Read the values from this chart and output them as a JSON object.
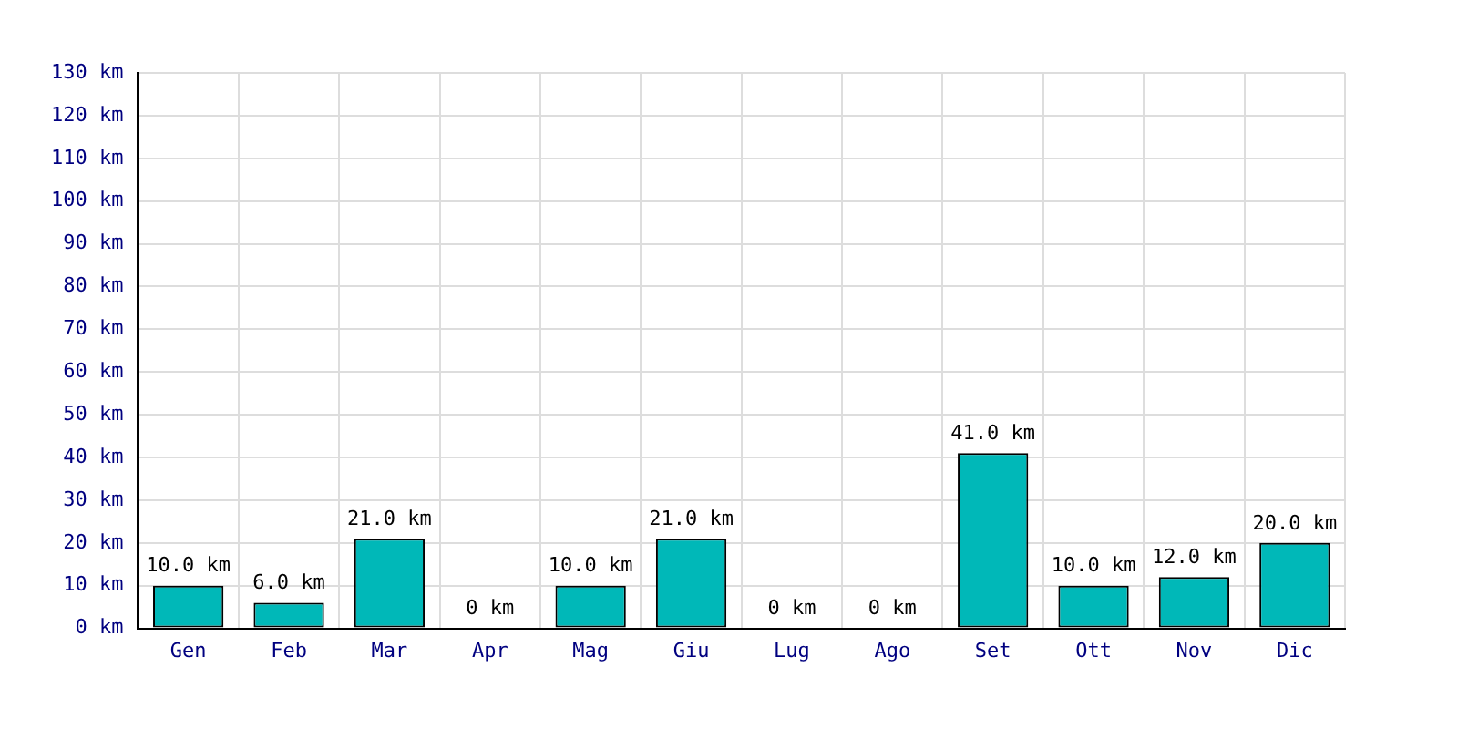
{
  "chart_data": {
    "type": "bar",
    "categories": [
      "Gen",
      "Feb",
      "Mar",
      "Apr",
      "Mag",
      "Giu",
      "Lug",
      "Ago",
      "Set",
      "Ott",
      "Nov",
      "Dic"
    ],
    "values": [
      10,
      6,
      21,
      0,
      10,
      21,
      0,
      0,
      41,
      10,
      12,
      20
    ],
    "value_labels": [
      "10.0 km",
      "6.0 km",
      "21.0 km",
      "0 km",
      "10.0 km",
      "21.0 km",
      "0 km",
      "0 km",
      "41.0 km",
      "10.0 km",
      "12.0 km",
      "20.0 km"
    ],
    "color": "#00b8b8",
    "ylim": [
      0,
      130
    ],
    "yticks": [
      {
        "value": 0,
        "label": "0 km"
      },
      {
        "value": 10,
        "label": "10 km"
      },
      {
        "value": 20,
        "label": "20 km"
      },
      {
        "value": 30,
        "label": "30 km"
      },
      {
        "value": 40,
        "label": "40 km"
      },
      {
        "value": 50,
        "label": "50 km"
      },
      {
        "value": 60,
        "label": "60 km"
      },
      {
        "value": 70,
        "label": "70 km"
      },
      {
        "value": 80,
        "label": "80 km"
      },
      {
        "value": 90,
        "label": "90 km"
      },
      {
        "value": 100,
        "label": "100 km"
      },
      {
        "value": 110,
        "label": "110 km"
      },
      {
        "value": 120,
        "label": "120 km"
      },
      {
        "value": 130,
        "label": "130 km"
      }
    ],
    "grid": true
  }
}
